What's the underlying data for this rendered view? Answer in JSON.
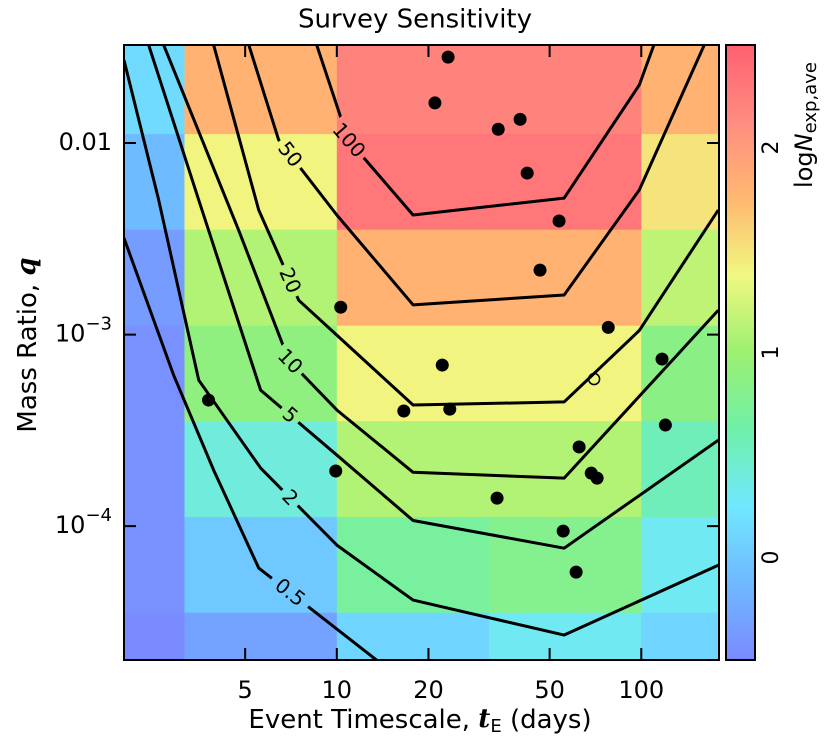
{
  "chart_data": {
    "type": "heatmap",
    "title": "Survey Sensitivity",
    "xlabel": {
      "text": "Event Timescale, ",
      "var": "t",
      "sub": "E",
      "suffix": " (days)"
    },
    "ylabel": {
      "text": "Mass Ratio, ",
      "var": "q"
    },
    "xscale": "log",
    "yscale": "log",
    "xlim": [
      2,
      180
    ],
    "ylim": [
      2e-05,
      0.0325
    ],
    "xticks": [
      5,
      10,
      20,
      50,
      100
    ],
    "yticks": [
      {
        "value": 0.01,
        "label": "0.01"
      },
      {
        "value": 0.001,
        "label": "10",
        "exponent": "−3"
      },
      {
        "value": 0.0001,
        "label": "10",
        "exponent": "−4"
      }
    ],
    "xedges": [
      2,
      3.16,
      10,
      31.6,
      100,
      180
    ],
    "yedges": [
      2e-05,
      3.55e-05,
      0.000112,
      0.000355,
      0.00112,
      0.00355,
      0.0112,
      0.0325
    ],
    "z": [
      [
        -0.5,
        -0.3,
        0.1,
        0.3,
        0.1
      ],
      [
        -0.45,
        0.0,
        0.7,
        0.8,
        0.3
      ],
      [
        -0.45,
        0.4,
        1.1,
        1.1,
        0.55
      ],
      [
        -0.45,
        0.9,
        1.4,
        1.4,
        0.85
      ],
      [
        -0.35,
        1.1,
        1.8,
        1.8,
        1.15
      ],
      [
        -0.1,
        1.4,
        2.3,
        2.3,
        1.5
      ],
      [
        0.15,
        1.8,
        2.2,
        2.2,
        1.8
      ]
    ],
    "clim": [
      -0.5,
      2.5
    ],
    "colormap": [
      "#7a8aff",
      "#6fb8ff",
      "#70e8ff",
      "#6ff0a8",
      "#9cf070",
      "#f0f880",
      "#ffb870",
      "#ff8c80",
      "#ff6070"
    ],
    "colorbar": {
      "label": {
        "text": "log",
        "var": "N",
        "sub": "exp,ave"
      },
      "ticks": [
        0,
        1,
        2
      ]
    },
    "contours": [
      {
        "level": 0.5,
        "x": [
          2,
          2.91,
          3.94,
          5.54,
          13.5
        ],
        "y": [
          0.00319,
          0.000615,
          0.000196,
          6.04e-05,
          2e-05
        ]
      },
      {
        "level": 2,
        "x": [
          2,
          2.6,
          3.52,
          5.62,
          10,
          17.8,
          55.8,
          179
        ],
        "y": [
          0.0271,
          0.00504,
          0.000578,
          0.000201,
          7.96e-05,
          4.11e-05,
          2.7e-05,
          6.25e-05
        ]
      },
      {
        "level": 5,
        "x": [
          2.41,
          3.52,
          5.62,
          10,
          17.8,
          55.8,
          179
        ],
        "y": [
          0.0325,
          0.00504,
          0.000513,
          0.000235,
          0.000107,
          7.67e-05,
          0.000281
        ]
      },
      {
        "level": 10,
        "x": [
          2.7,
          4.76,
          6.95,
          10,
          17.8,
          55.8,
          179
        ],
        "y": [
          0.0325,
          0.00351,
          0.000736,
          0.000404,
          0.000191,
          0.000178,
          0.00134
        ]
      },
      {
        "level": 20,
        "x": [
          3.94,
          5.54,
          7.5,
          10,
          17.8,
          55.8,
          98.5,
          179
        ],
        "y": [
          0.0325,
          0.00447,
          0.00151,
          0.000993,
          0.000429,
          0.000445,
          0.00105,
          0.00447
        ]
      },
      {
        "level": 50,
        "x": [
          5.14,
          6.44,
          10,
          17.8,
          55.8,
          98.5,
          161
        ],
        "y": [
          0.0325,
          0.0104,
          0.00421,
          0.00143,
          0.00161,
          0.00569,
          0.0325
        ]
      },
      {
        "level": 100,
        "x": [
          8.59,
          10.9,
          17.8,
          55.8,
          98.5,
          110
        ],
        "y": [
          0.0325,
          0.0104,
          0.00421,
          0.00516,
          0.0201,
          0.0325
        ]
      }
    ],
    "points": {
      "color": "#000000",
      "x": [
        23.2,
        21.0,
        33.9,
        40.0,
        42.2,
        53.7,
        46.5,
        10.3,
        77.9,
        22.2,
        117,
        3.79,
        16.6,
        23.5,
        120,
        62.5,
        9.92,
        68.5,
        71.6,
        33.6,
        55.4,
        61.1
      ],
      "y": [
        0.0281,
        0.0162,
        0.0118,
        0.0133,
        0.00697,
        0.00392,
        0.00217,
        0.00139,
        0.00109,
        0.000693,
        0.000745,
        0.000455,
        0.000399,
        0.000408,
        0.000337,
        0.000259,
        0.000194,
        0.000189,
        0.000178,
        0.00014,
        9.42e-05,
        5.75e-05
      ]
    },
    "open_points": {
      "color": "#000000",
      "x": [
        70.0
      ],
      "y": [
        0.000586
      ]
    }
  }
}
